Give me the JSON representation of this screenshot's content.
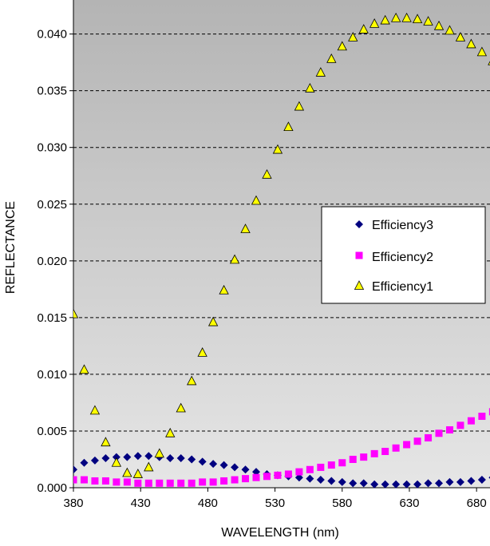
{
  "chart_data": {
    "type": "scatter",
    "xlabel": "WAVELENGTH (nm)",
    "ylabel": "REFLECTANCE",
    "xlim": [
      380,
      690
    ],
    "ylim": [
      0,
      0.043
    ],
    "x_ticks": [
      "380",
      "430",
      "480",
      "530",
      "580",
      "630",
      "680"
    ],
    "y_ticks": [
      "0.000",
      "0.005",
      "0.010",
      "0.015",
      "0.020",
      "0.025",
      "0.030",
      "0.035",
      "0.040"
    ],
    "grid": true,
    "legend_position": "right",
    "background_colors": [
      "#b4b4b4",
      "#e6e6e6"
    ],
    "x": [
      380,
      388,
      396,
      404,
      412,
      420,
      428,
      436,
      444,
      452,
      460,
      468,
      476,
      484,
      492,
      500,
      508,
      516,
      524,
      532,
      540,
      548,
      556,
      564,
      572,
      580,
      588,
      596,
      604,
      612,
      620,
      628,
      636,
      644,
      652,
      660,
      668,
      676,
      684,
      692
    ],
    "series": [
      {
        "name": "Efficiency3",
        "marker": "diamond",
        "color": "#000080",
        "values": [
          0.0016,
          0.0022,
          0.0024,
          0.0026,
          0.0027,
          0.0027,
          0.0028,
          0.0028,
          0.0027,
          0.0026,
          0.0026,
          0.0025,
          0.0023,
          0.0021,
          0.002,
          0.0018,
          0.0016,
          0.0014,
          0.0012,
          0.0011,
          0.001,
          0.0009,
          0.0008,
          0.0007,
          0.0006,
          0.0005,
          0.0004,
          0.0004,
          0.0003,
          0.0003,
          0.0003,
          0.0003,
          0.0003,
          0.0004,
          0.0004,
          0.0005,
          0.0005,
          0.0006,
          0.0007,
          0.0009
        ]
      },
      {
        "name": "Efficiency2",
        "marker": "square",
        "color": "#ff00ff",
        "values": [
          0.0007,
          0.0007,
          0.0006,
          0.0006,
          0.0005,
          0.0005,
          0.0004,
          0.0004,
          0.0004,
          0.0004,
          0.0004,
          0.0004,
          0.0005,
          0.0005,
          0.0006,
          0.0007,
          0.0008,
          0.0009,
          0.001,
          0.0011,
          0.0012,
          0.0014,
          0.0016,
          0.0018,
          0.002,
          0.0022,
          0.0025,
          0.0027,
          0.003,
          0.0032,
          0.0035,
          0.0038,
          0.0041,
          0.0044,
          0.0048,
          0.0051,
          0.0055,
          0.0059,
          0.0063,
          0.0067
        ]
      },
      {
        "name": "Efficiency1",
        "marker": "triangle",
        "color": "#ffff00",
        "values": [
          0.0153,
          0.0104,
          0.0068,
          0.004,
          0.0022,
          0.0013,
          0.0012,
          0.0018,
          0.003,
          0.0048,
          0.007,
          0.0094,
          0.0119,
          0.0146,
          0.0174,
          0.0201,
          0.0228,
          0.0253,
          0.0276,
          0.0298,
          0.0318,
          0.0336,
          0.0352,
          0.0366,
          0.0378,
          0.0389,
          0.0397,
          0.0404,
          0.0409,
          0.0412,
          0.0414,
          0.0414,
          0.0413,
          0.0411,
          0.0407,
          0.0403,
          0.0397,
          0.0391,
          0.0384,
          0.0376
        ]
      }
    ]
  }
}
